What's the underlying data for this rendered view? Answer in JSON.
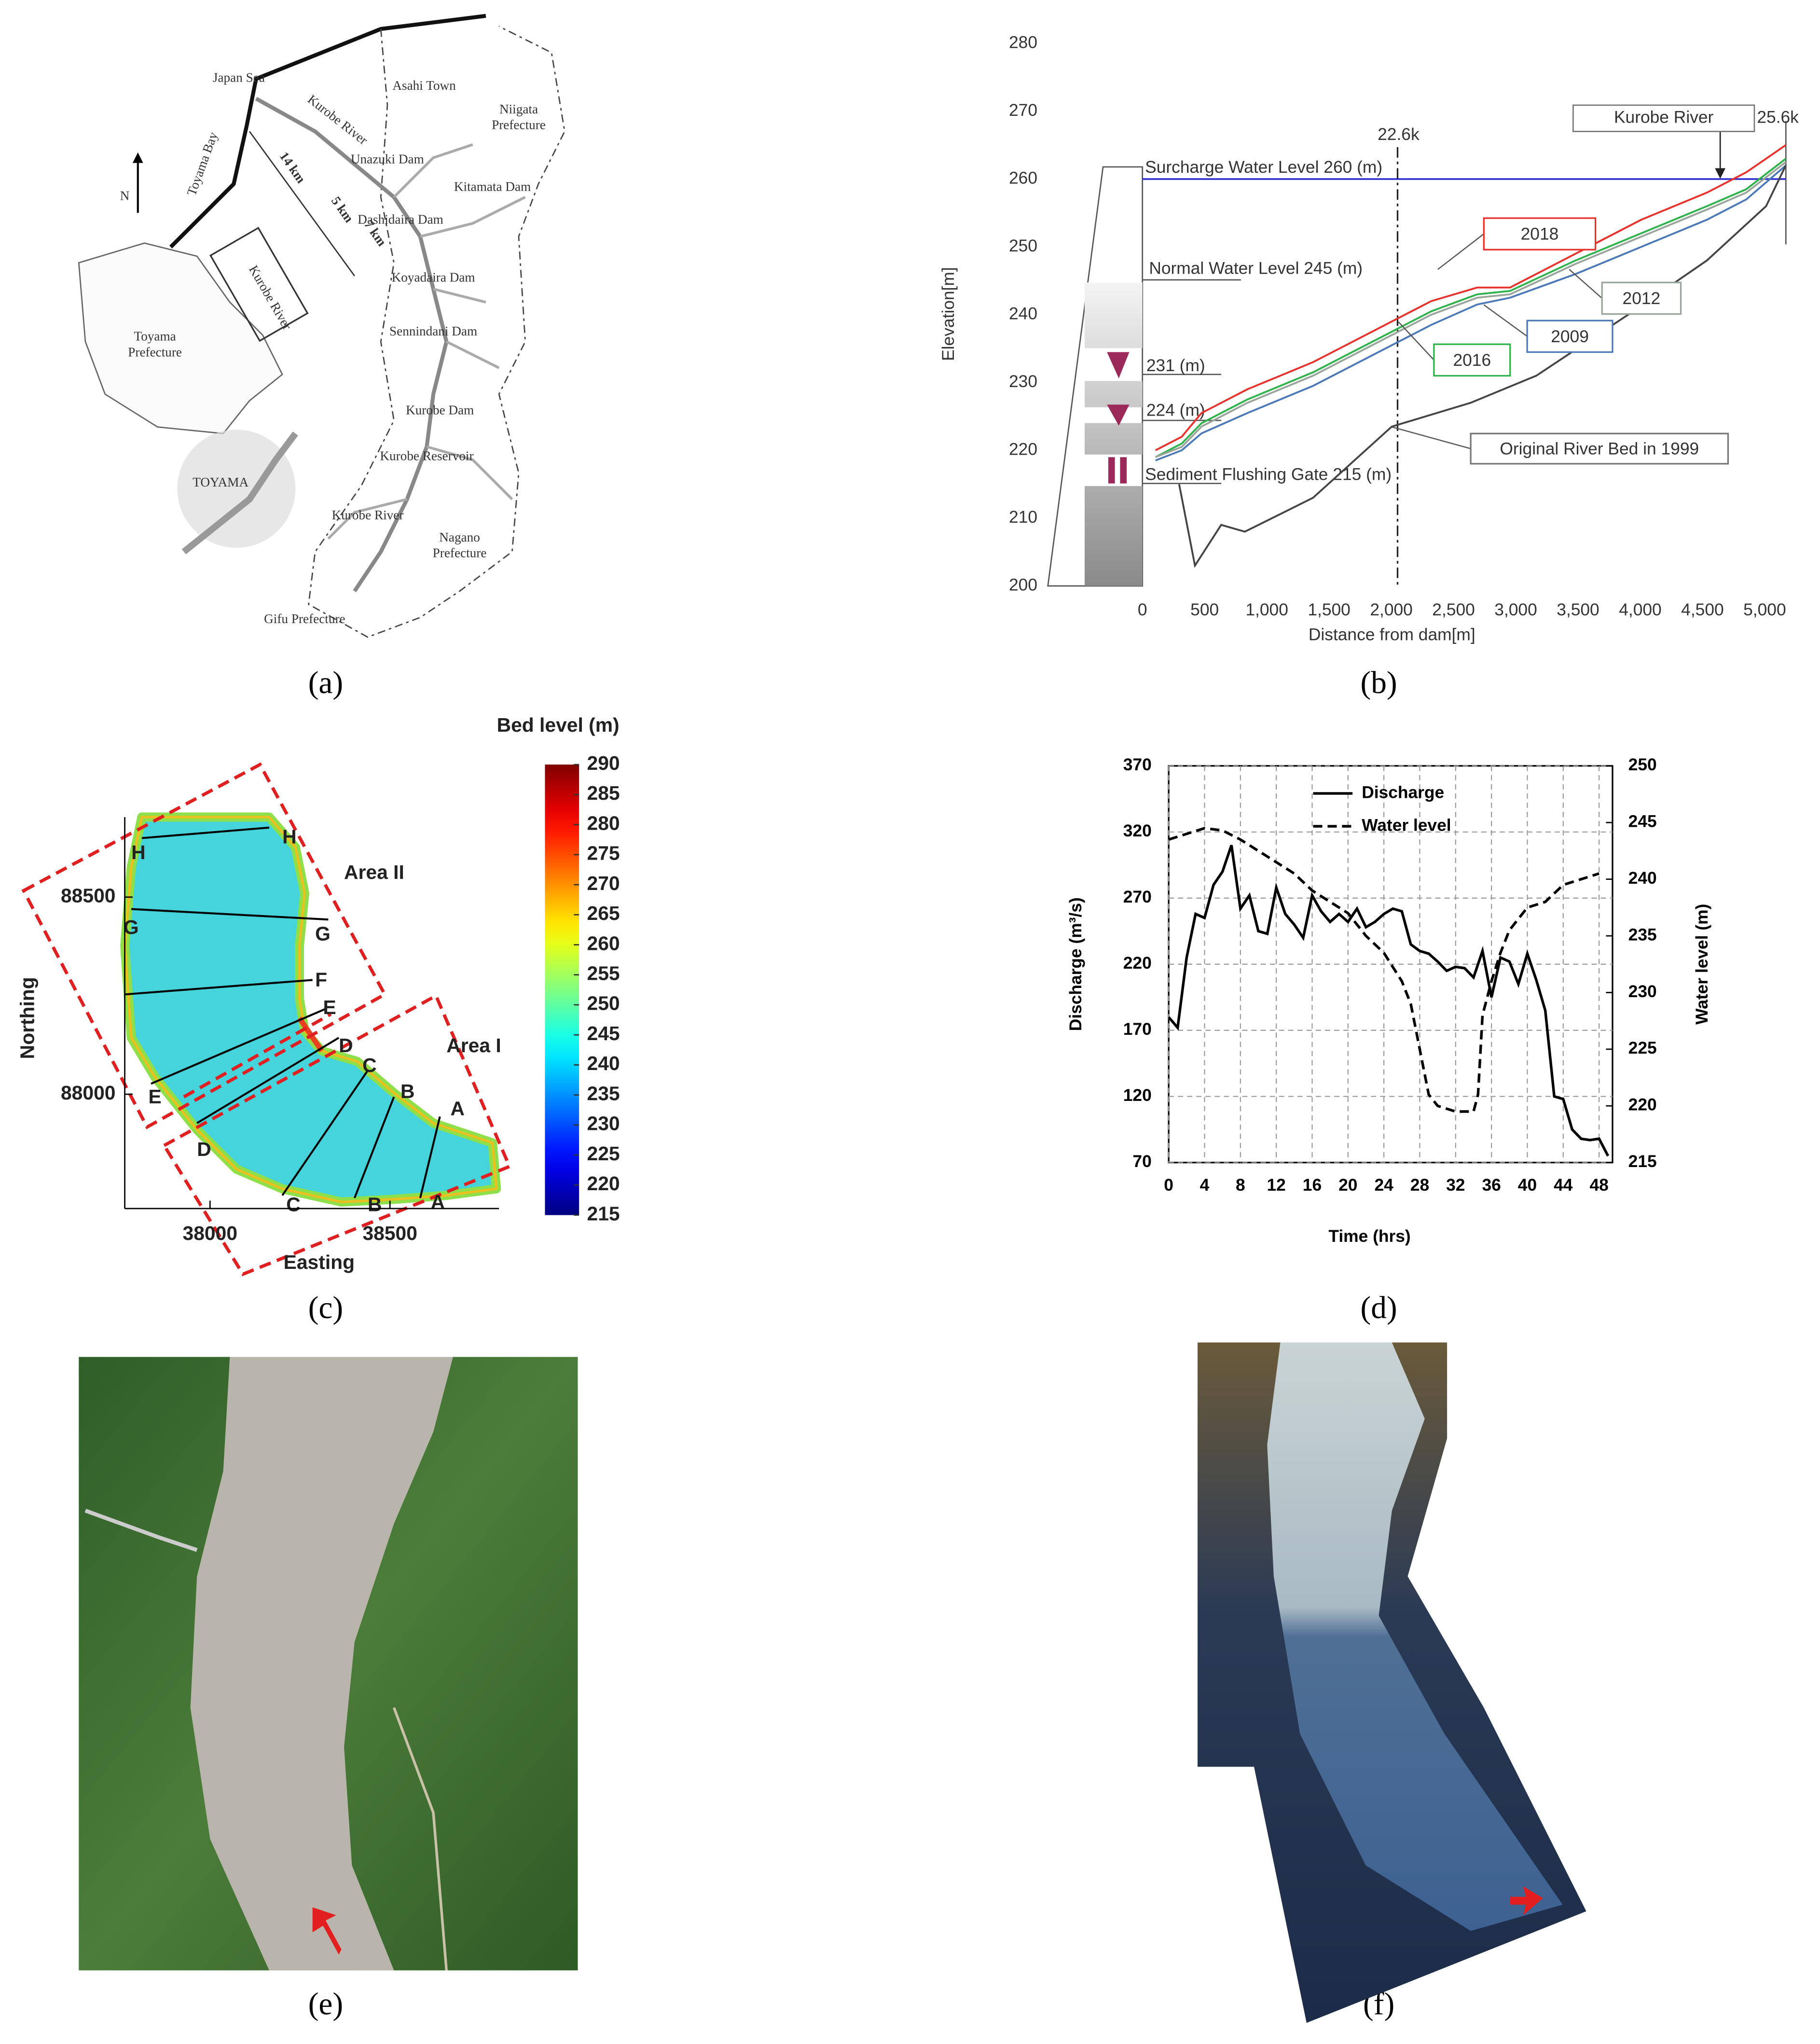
{
  "figure": {
    "panel_labels": [
      "(a)",
      "(b)",
      "(c)",
      "(d)",
      "(e)",
      "(f)"
    ]
  },
  "map_a": {
    "labels": [
      "Japan Sea",
      "Kurobe River",
      "Asahi Town",
      "Niigata\nPrefecture",
      "Toyama Bay",
      "N",
      "14 km",
      "5 km",
      "7 km",
      "Unazuki Dam",
      "Kitamata Dam",
      "Dashidaira Dam",
      "Koyadaira Dam",
      "Sennindani Dam",
      "Kurobe River",
      "Toyama\nPrefecture",
      "TOYAMA",
      "Kurobe Dam",
      "Kurobe Reservoir",
      "Kurobe River",
      "Nagano\nPrefecture",
      "Gifu Prefecture"
    ]
  },
  "chart_data": [
    {
      "type": "line",
      "y_label": "Elevation[m]",
      "x_label": "Distance from dam[m]",
      "xlim": [
        0,
        5170
      ],
      "ylim": [
        200,
        280
      ],
      "xticks": [
        0,
        500,
        {
          "value": 1000,
          "label": "1,000"
        },
        {
          "value": 1500,
          "label": "1,500"
        },
        {
          "value": 2000,
          "label": "2,000"
        },
        {
          "value": 2500,
          "label": "2,500"
        },
        {
          "value": 3000,
          "label": "3,000"
        },
        {
          "value": 3500,
          "label": "3,500"
        },
        {
          "value": 4000,
          "label": "4,000"
        },
        {
          "value": 4500,
          "label": "4,500"
        },
        {
          "value": 5000,
          "label": "5,000"
        }
      ],
      "yticks": [
        200,
        210,
        220,
        230,
        240,
        250,
        260,
        270,
        280
      ],
      "annotations": {
        "surcharge": "Surcharge Water Level 260 (m)",
        "normal": "Normal Water Level 245 (m)",
        "level_231": "231 (m)",
        "level_224": "224 (m)",
        "gate": "Sediment Flushing Gate 215 (m)",
        "section_left": "22.6k",
        "section_right": "25.6k",
        "river": "Kurobe River"
      },
      "surcharge_level": 260,
      "surcharge_color": "#2b2bd0",
      "section_x": 2050,
      "series": [
        {
          "name": "2018",
          "color": "#e8312a",
          "x": [
            105,
            316,
            475,
            844,
            1371,
            1899,
            2321,
            2690,
            2954,
            3481,
            4008,
            4536,
            4852,
            5169
          ],
          "values": [
            220,
            222,
            225.5,
            229,
            233,
            238,
            242,
            244,
            244,
            249,
            254,
            258,
            261,
            265
          ]
        },
        {
          "name": "2016",
          "color": "#2db34a",
          "x": [
            105,
            316,
            475,
            844,
            1371,
            1899,
            2321,
            2690,
            2954,
            3481,
            4008,
            4536,
            4852,
            5169
          ],
          "values": [
            219,
            221,
            224,
            227.5,
            231.5,
            236.5,
            240.5,
            243,
            243.5,
            248,
            252,
            256,
            258.5,
            263
          ]
        },
        {
          "name": "2012",
          "color": "#9aa59a",
          "x": [
            105,
            316,
            475,
            844,
            1371,
            1899,
            2321,
            2690,
            2954,
            3481,
            4008,
            4536,
            4852,
            5169
          ],
          "values": [
            219,
            220.5,
            223.5,
            227,
            231,
            236,
            240,
            242.5,
            243,
            247.5,
            251.5,
            255.5,
            258,
            262.5
          ]
        },
        {
          "name": "2009",
          "color": "#4a78b8",
          "x": [
            105,
            316,
            475,
            844,
            1371,
            1899,
            2321,
            2690,
            2954,
            3481,
            4008,
            4536,
            4852,
            5169
          ],
          "values": [
            218.5,
            220,
            222.5,
            225.5,
            229.5,
            234.5,
            238.5,
            241.5,
            242.5,
            246,
            250,
            254,
            257,
            262
          ]
        },
        {
          "name": "Original River Bed in 1999",
          "color": "#444444",
          "x": [
            295,
            422,
            633,
            823,
            1371,
            2004,
            2637,
            3165,
            3903,
            4536,
            5011,
            5169
          ],
          "values": [
            215,
            203,
            209,
            208,
            213,
            223.5,
            227,
            231,
            240,
            248,
            256,
            262
          ]
        }
      ]
    },
    {
      "type": "contour",
      "title": "Bed level (m)",
      "x_label": "Easting",
      "y_label": "Northing",
      "xlim": [
        37763,
        38803
      ],
      "ylim": [
        87710,
        88703
      ],
      "xticks": [
        38000,
        38500
      ],
      "yticks": [
        88000,
        88500
      ],
      "colorbar": {
        "clim": [
          215,
          290
        ],
        "ticks": [
          215,
          220,
          225,
          230,
          235,
          240,
          245,
          250,
          255,
          260,
          265,
          270,
          275,
          280,
          285,
          290
        ],
        "colormap": "jet"
      },
      "areas": [
        "Area II",
        "Area I"
      ],
      "sections": [
        "A",
        "B",
        "C",
        "D",
        "E",
        "F",
        "G",
        "H"
      ]
    },
    {
      "type": "line",
      "x_label": "Time (hrs)",
      "y_label": "Discharge (m³/s)",
      "y2_label": "Water level (m)",
      "xlim": [
        0,
        49.5
      ],
      "ylim": [
        70,
        370
      ],
      "y2lim": [
        215,
        250
      ],
      "xticks": [
        0,
        4,
        8,
        12,
        16,
        20,
        24,
        28,
        32,
        36,
        40,
        44,
        48
      ],
      "yticks": [
        70,
        120,
        170,
        220,
        270,
        320,
        370
      ],
      "y2ticks": [
        215,
        220,
        225,
        230,
        235,
        240,
        245,
        250
      ],
      "grid": true,
      "legend": "upper left",
      "series": [
        {
          "name": "Discharge",
          "color": "#000000",
          "dash": "solid",
          "x": [
            0,
            1,
            2,
            3,
            4,
            5,
            6,
            7,
            8,
            9,
            10,
            11,
            12,
            13,
            14,
            15,
            16,
            17,
            18,
            19,
            20,
            21,
            22,
            23,
            24,
            25,
            26,
            27,
            28,
            29,
            30,
            31,
            32,
            33,
            34,
            35,
            36,
            37,
            38,
            39,
            40,
            41,
            42,
            43,
            44,
            45,
            46,
            47,
            48,
            49
          ],
          "values": [
            180,
            172,
            225,
            258,
            255,
            280,
            290,
            310,
            262,
            272,
            245,
            243,
            278,
            258,
            250,
            240,
            272,
            260,
            252,
            258,
            252,
            262,
            248,
            252,
            258,
            262,
            260,
            235,
            230,
            228,
            222,
            215,
            218,
            217,
            210,
            230,
            195,
            225,
            222,
            205,
            228,
            208,
            185,
            120,
            118,
            95,
            88,
            87,
            88,
            75
          ]
        },
        {
          "name": "Water level",
          "color": "#000000",
          "dash": "dashed",
          "axis": "y2",
          "x": [
            0,
            2,
            4,
            6,
            8,
            10,
            12,
            14,
            16,
            18,
            20,
            22,
            24,
            26,
            27,
            28,
            29,
            30,
            32,
            34,
            34.5,
            35,
            36,
            37,
            38,
            40,
            42,
            44,
            46,
            48
          ],
          "values": [
            243.5,
            244,
            244.5,
            244.3,
            243.5,
            242.5,
            241.5,
            240.5,
            239,
            238,
            237,
            235,
            233.5,
            231,
            229,
            225,
            221,
            220,
            219.5,
            219.5,
            221,
            228,
            231,
            233.5,
            235.5,
            237.5,
            238,
            239.5,
            240,
            240.5
          ]
        }
      ]
    }
  ]
}
